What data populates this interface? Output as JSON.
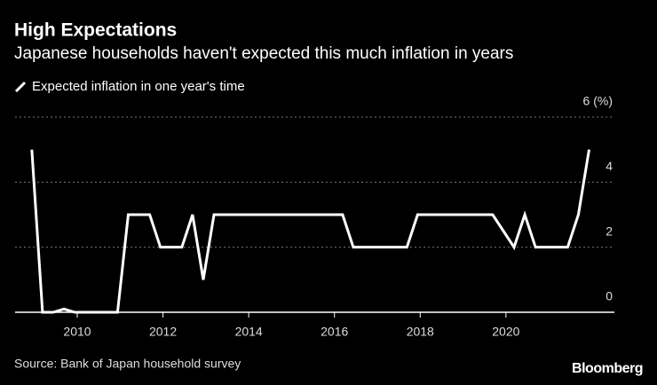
{
  "chart_data": {
    "type": "line",
    "title": "High Expectations",
    "subtitle": "Japanese households haven't expected this much inflation in years",
    "source": "Source: Bank of Japan household survey",
    "logo": "Bloomberg",
    "x": [
      2008.94,
      2009.19,
      2009.44,
      2009.69,
      2009.94,
      2010.19,
      2010.44,
      2010.69,
      2010.94,
      2011.19,
      2011.44,
      2011.69,
      2011.94,
      2012.19,
      2012.44,
      2012.69,
      2012.94,
      2013.19,
      2013.44,
      2013.69,
      2013.94,
      2014.19,
      2014.44,
      2014.69,
      2014.94,
      2015.19,
      2015.44,
      2015.69,
      2015.94,
      2016.19,
      2016.44,
      2016.69,
      2016.94,
      2017.19,
      2017.44,
      2017.69,
      2017.94,
      2018.19,
      2018.44,
      2018.69,
      2018.94,
      2019.19,
      2019.44,
      2019.69,
      2020.19,
      2020.44,
      2020.69,
      2020.94,
      2021.19,
      2021.44,
      2021.69,
      2021.94
    ],
    "series": [
      {
        "name": "Expected inflation in one year's time",
        "color": "#ffffff",
        "values": [
          5,
          0,
          0,
          0.1,
          0,
          0,
          0,
          0,
          0,
          3,
          3,
          3,
          2,
          2,
          2,
          3,
          1,
          3,
          3,
          3,
          3,
          3,
          3,
          3,
          3,
          3,
          3,
          3,
          3,
          3,
          2,
          2,
          2,
          2,
          2,
          2,
          3,
          3,
          3,
          3,
          3,
          3,
          3,
          3,
          2,
          3,
          2,
          2,
          2,
          2,
          3,
          5
        ]
      }
    ],
    "xlim": [
      2008.55,
      2022.53
    ],
    "xticks": [
      2010,
      2012,
      2014,
      2016,
      2018,
      2020
    ],
    "ylim": [
      0,
      6
    ],
    "yticks": [
      0,
      2,
      4,
      {
        "value": 6,
        "label": "6 (%)"
      }
    ],
    "grid": true
  }
}
